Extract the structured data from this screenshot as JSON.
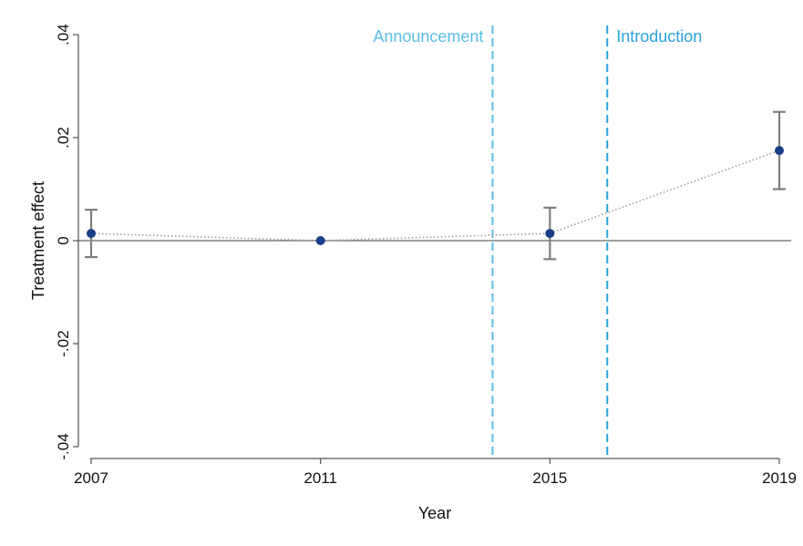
{
  "chart_data": {
    "type": "scatter",
    "xlabel": "Year",
    "ylabel": "Treatment effect",
    "xlim": [
      2007,
      2019
    ],
    "ylim": [
      -0.04,
      0.04
    ],
    "x_ticks": [
      {
        "value": 2007,
        "label": "2007"
      },
      {
        "value": 2011,
        "label": "2011"
      },
      {
        "value": 2015,
        "label": "2015"
      },
      {
        "value": 2019,
        "label": "2019"
      }
    ],
    "y_ticks": [
      {
        "value": 0.04,
        "label": ".04"
      },
      {
        "value": 0.02,
        "label": ".02"
      },
      {
        "value": 0,
        "label": "0"
      },
      {
        "value": -0.02,
        "label": "-.02"
      },
      {
        "value": -0.04,
        "label": "-.04"
      }
    ],
    "grid": false,
    "reference_line_y": 0,
    "series": [
      {
        "points": [
          {
            "x": 2007,
            "y": 0.0014,
            "ci_low": -0.0032,
            "ci_high": 0.006
          },
          {
            "x": 2011,
            "y": 0.0,
            "ci_low": null,
            "ci_high": null
          },
          {
            "x": 2015,
            "y": 0.0014,
            "ci_low": -0.0036,
            "ci_high": 0.0064
          },
          {
            "x": 2019,
            "y": 0.0175,
            "ci_low": 0.01,
            "ci_high": 0.025
          }
        ],
        "marker_color": "#1a3f8a",
        "ci_color": "#7f7f7f",
        "connector_color": "#a0a0a0"
      }
    ],
    "annotations": [
      {
        "x": 2014,
        "label": "Announcement",
        "label_side": "left",
        "color": "#5bbde6"
      },
      {
        "x": 2016,
        "label": "Introduction",
        "label_side": "right",
        "color": "#2aa2dc"
      }
    ]
  }
}
